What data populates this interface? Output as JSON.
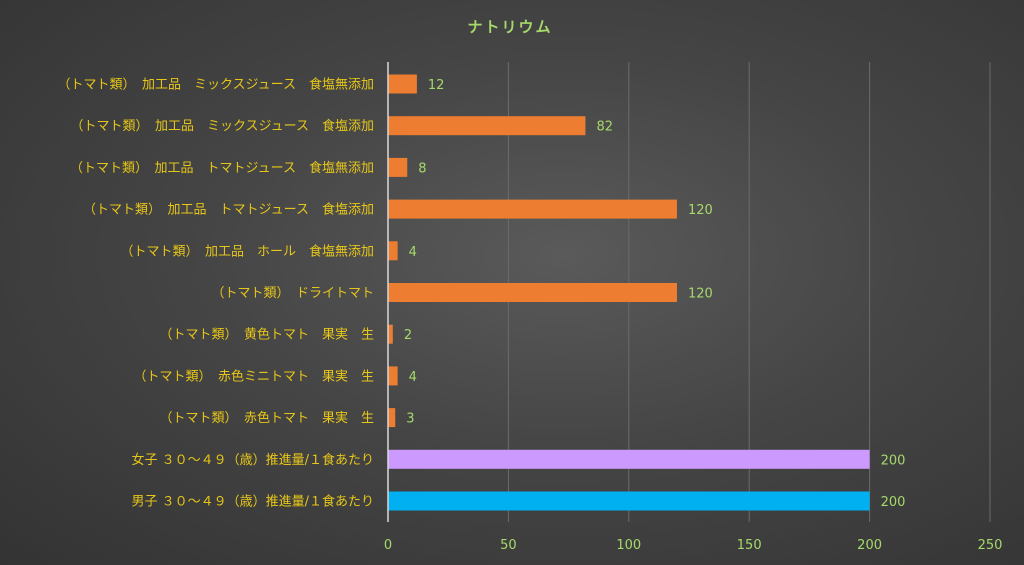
{
  "chart_data": {
    "type": "bar",
    "orientation": "horizontal",
    "title": "ナトリウム",
    "xlabel": "",
    "ylabel": "",
    "xlim": [
      0,
      250
    ],
    "xticks": [
      0,
      50,
      100,
      150,
      200,
      250
    ],
    "grid": true,
    "legend": "none",
    "categories": [
      "（トマト類）　加工品　ミックスジュース　食塩無添加",
      "（トマト類）　加工品　ミックスジュース　食塩添加",
      "（トマト類）　加工品　トマトジュース　食塩無添加",
      "（トマト類）　加工品　トマトジュース　食塩添加",
      "（トマト類）　加工品　ホール　食塩無添加",
      "（トマト類）　ドライトマト",
      "（トマト類）　黄色トマト　果実　生",
      "（トマト類）　赤色ミニトマト　果実　生",
      "（トマト類）　赤色トマト　果実　生",
      "女子 ３０～４９（歳）推進量/１食あたり",
      "男子 ３０～４９（歳）推進量/１食あたり"
    ],
    "values": [
      12,
      82,
      8,
      120,
      4,
      120,
      2,
      4,
      3,
      200,
      200
    ],
    "colors": [
      "#ed7d31",
      "#ed7d31",
      "#ed7d31",
      "#ed7d31",
      "#ed7d31",
      "#ed7d31",
      "#ed7d31",
      "#ed7d31",
      "#ed7d31",
      "#cc99ff",
      "#00b0f0"
    ]
  }
}
